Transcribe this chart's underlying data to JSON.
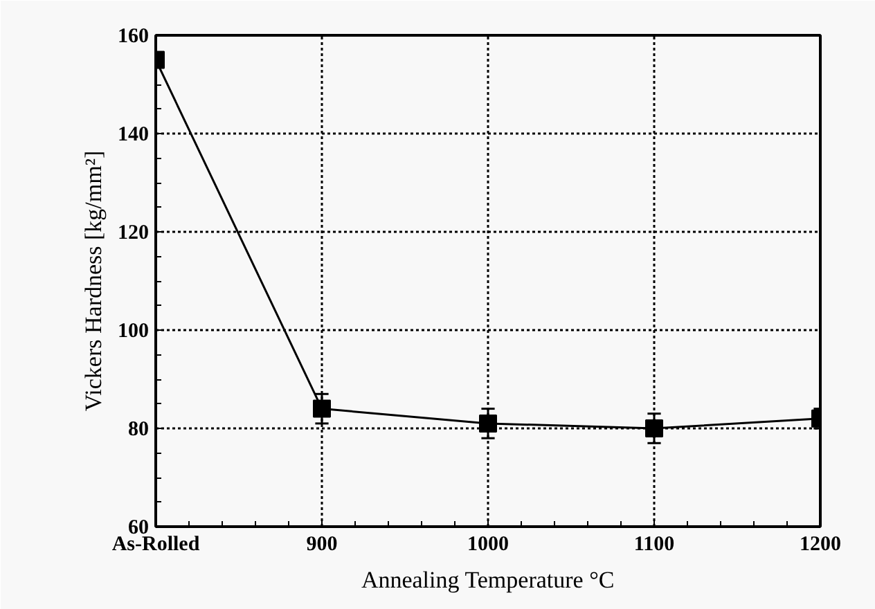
{
  "chart_data": {
    "type": "line",
    "xlabel": "Annealing Temperature °C",
    "ylabel": "Vickers Hardness [kg/mm²]",
    "x": [
      800,
      900,
      1000,
      1100,
      1200
    ],
    "series": [
      {
        "color": "#000000",
        "values": [
          155,
          84,
          81,
          80,
          82
        ],
        "errors": [
          1,
          3,
          3,
          3,
          2
        ]
      }
    ],
    "xlim": [
      800,
      1200
    ],
    "xticks": [
      {
        "value": 800,
        "label": "As-Rolled"
      },
      900,
      1000,
      1100,
      1200
    ],
    "ylim": [
      60,
      160
    ],
    "yticks": [
      60,
      80,
      100,
      120,
      140,
      160
    ],
    "grid": true,
    "marker": "square",
    "line_style": "solid"
  }
}
